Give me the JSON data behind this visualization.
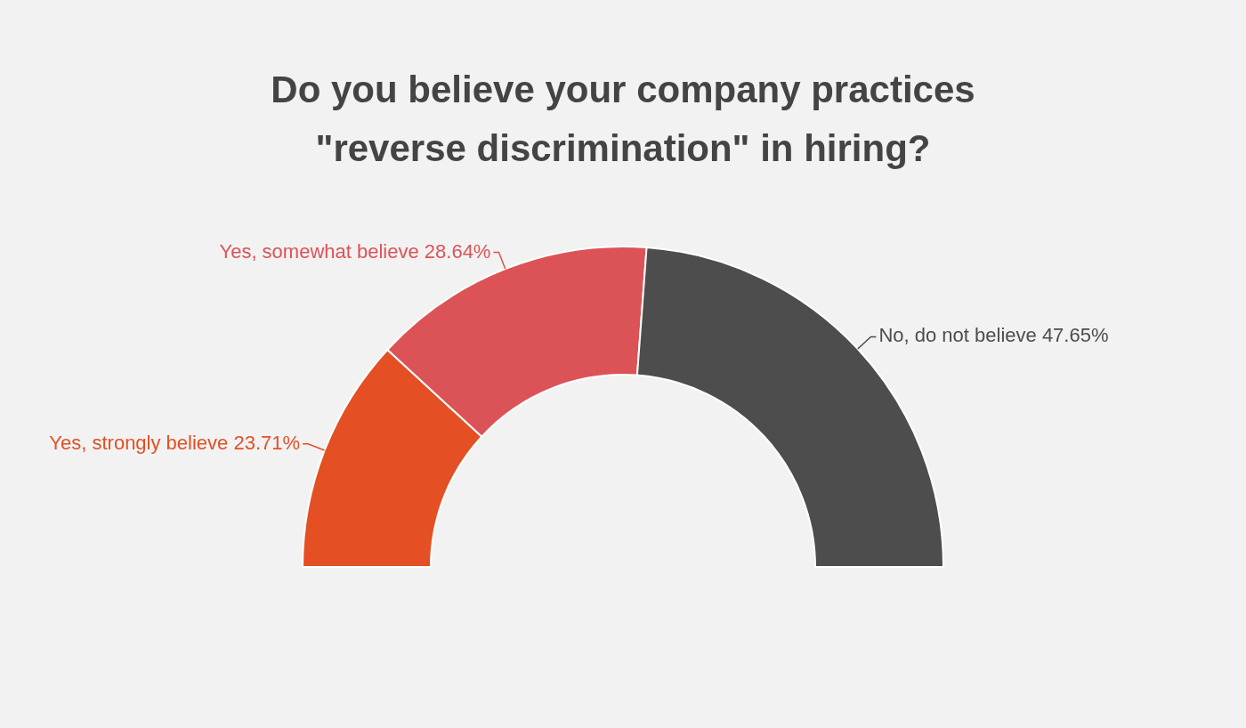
{
  "chart_data": {
    "type": "donut",
    "title": "Do you believe your company practices \"reverse discrimination\" in hiring?",
    "categories": [
      "Yes, strongly believe",
      "Yes, somewhat believe",
      "No, do not believe"
    ],
    "values": [
      23.71,
      28.64,
      47.65
    ],
    "value_labels": [
      "23.71%",
      "28.64%",
      "47.65%"
    ],
    "colors": [
      "#e44f24",
      "#dc5357",
      "#4d4d4d"
    ],
    "legend": false
  }
}
